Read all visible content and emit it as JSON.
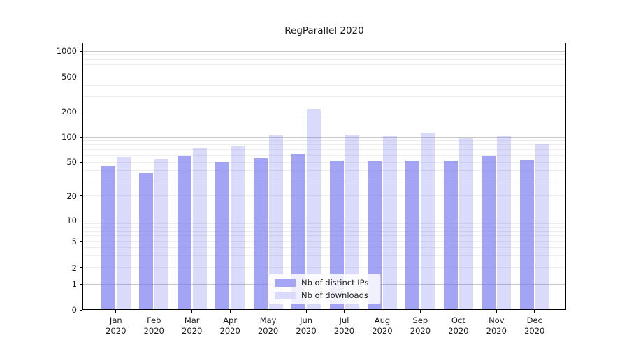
{
  "title": "RegParallel 2020",
  "legend": {
    "items": [
      {
        "label": "Nb of distinct IPs",
        "swatch_color": "#a5a5f5"
      },
      {
        "label": "Nb of downloads",
        "swatch_color": "#dbdbfb"
      }
    ]
  },
  "chart_data": {
    "type": "bar",
    "title": "RegParallel 2020",
    "xlabel": "",
    "ylabel": "",
    "y_scale": "symlog",
    "grid": "horizontal, major and minor",
    "legend_position": "bottom center inside plot",
    "y_ticks": [
      1000,
      500,
      200,
      100,
      50,
      20,
      10,
      5,
      2,
      1,
      0
    ],
    "categories": [
      "Jan",
      "Feb",
      "Mar",
      "Apr",
      "May",
      "Jun",
      "Jul",
      "Aug",
      "Sep",
      "Oct",
      "Nov",
      "Dec"
    ],
    "category_year": "2020",
    "series": [
      {
        "name": "Nb of distinct IPs",
        "color": "rgba(120,120,240,0.67)",
        "values": [
          45,
          37,
          60,
          50,
          55,
          63,
          52,
          51,
          52,
          52,
          60,
          53
        ]
      },
      {
        "name": "Nb of downloads",
        "color": "rgba(120,120,240,0.27)",
        "values": [
          58,
          54,
          74,
          78,
          105,
          215,
          106,
          103,
          113,
          97,
          103,
          81
        ]
      }
    ],
    "colors": {
      "grid_major": "#c6c6c6",
      "grid_minor": "#ededed",
      "axis": "#000000",
      "text": "#1a1a1a"
    }
  }
}
